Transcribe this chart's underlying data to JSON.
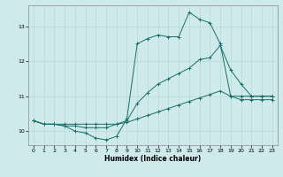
{
  "xlabel": "Humidex (Indice chaleur)",
  "background_color": "#ceeaea",
  "grid_color": "#b8d8d8",
  "line_color": "#1a6e6a",
  "xlim": [
    -0.5,
    23.5
  ],
  "ylim": [
    9.6,
    13.6
  ],
  "yticks": [
    10,
    11,
    12,
    13
  ],
  "xticks": [
    0,
    1,
    2,
    3,
    4,
    5,
    6,
    7,
    8,
    9,
    10,
    11,
    12,
    13,
    14,
    15,
    16,
    17,
    18,
    19,
    20,
    21,
    22,
    23
  ],
  "series1_x": [
    0,
    1,
    2,
    3,
    4,
    5,
    6,
    7,
    8,
    9,
    10,
    11,
    12,
    13,
    14,
    15,
    16,
    17,
    18,
    19,
    20,
    21,
    22,
    23
  ],
  "series1_y": [
    10.3,
    10.2,
    10.2,
    10.15,
    10.0,
    9.95,
    9.8,
    9.75,
    9.85,
    10.35,
    12.5,
    12.65,
    12.75,
    12.7,
    12.7,
    13.4,
    13.2,
    13.1,
    12.5,
    11.0,
    11.0,
    11.0,
    11.0,
    11.0
  ],
  "series2_x": [
    0,
    1,
    2,
    3,
    4,
    5,
    6,
    7,
    8,
    9,
    10,
    11,
    12,
    13,
    14,
    15,
    16,
    17,
    18,
    19,
    20,
    21,
    22,
    23
  ],
  "series2_y": [
    10.3,
    10.2,
    10.2,
    10.15,
    10.15,
    10.1,
    10.1,
    10.1,
    10.2,
    10.3,
    10.8,
    11.1,
    11.35,
    11.5,
    11.65,
    11.8,
    12.05,
    12.1,
    12.45,
    11.75,
    11.35,
    11.0,
    11.0,
    11.0
  ],
  "series3_x": [
    0,
    1,
    2,
    3,
    4,
    5,
    6,
    7,
    8,
    9,
    10,
    11,
    12,
    13,
    14,
    15,
    16,
    17,
    18,
    19,
    20,
    21,
    22,
    23
  ],
  "series3_y": [
    10.3,
    10.2,
    10.2,
    10.2,
    10.2,
    10.2,
    10.2,
    10.2,
    10.2,
    10.25,
    10.35,
    10.45,
    10.55,
    10.65,
    10.75,
    10.85,
    10.95,
    11.05,
    11.15,
    11.0,
    10.9,
    10.9,
    10.9,
    10.9
  ]
}
